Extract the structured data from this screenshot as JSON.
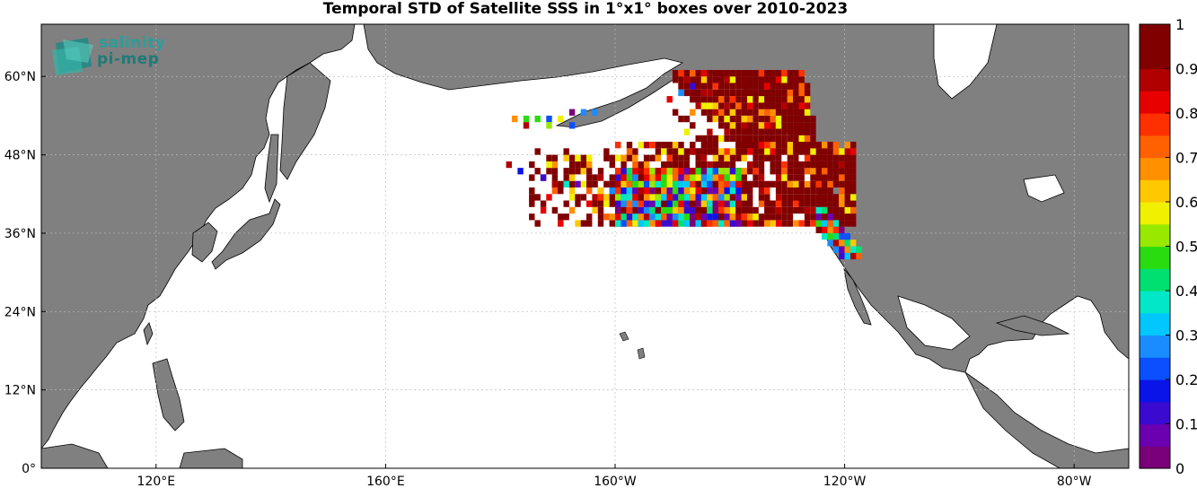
{
  "title": "Temporal STD of Satellite SSS in 1°x1° boxes over 2010-2023",
  "logo": {
    "line1": "salinity",
    "line2": "pi-mep"
  },
  "map": {
    "lon_range": [
      100,
      -75
    ],
    "lat_range": [
      0,
      68
    ],
    "lat_ticks": [
      {
        "value": 0,
        "label": "0°"
      },
      {
        "value": 12,
        "label": "12°N"
      },
      {
        "value": 24,
        "label": "24°N"
      },
      {
        "value": 36,
        "label": "36°N"
      },
      {
        "value": 48,
        "label": "48°N"
      },
      {
        "value": 60,
        "label": "60°N"
      }
    ],
    "lon_ticks": [
      {
        "value": 120,
        "label": "120°E"
      },
      {
        "value": 160,
        "label": "160°E"
      },
      {
        "value": -160,
        "label": "160°W"
      },
      {
        "value": -120,
        "label": "120°W"
      },
      {
        "value": -80,
        "label": "80°W"
      }
    ],
    "land_color": "#808080",
    "ocean_color": "#ffffff"
  },
  "colorbar": {
    "min": 0,
    "max": 1,
    "colors": [
      "#7a007a",
      "#6a00b0",
      "#3a0ad0",
      "#0a14e8",
      "#0a50ff",
      "#1a8cff",
      "#00c8ff",
      "#00e8c8",
      "#00e070",
      "#28dc10",
      "#98e800",
      "#f0f000",
      "#ffc800",
      "#ff9000",
      "#ff6000",
      "#ff3000",
      "#e80000",
      "#b00000",
      "#800000",
      "#800000"
    ],
    "ticks": [
      {
        "value": 0,
        "label": "0"
      },
      {
        "value": 0.1,
        "label": "0.1"
      },
      {
        "value": 0.2,
        "label": "0.2"
      },
      {
        "value": 0.3,
        "label": "0.3"
      },
      {
        "value": 0.4,
        "label": "0.4"
      },
      {
        "value": 0.5,
        "label": "0.5"
      },
      {
        "value": 0.6,
        "label": "0.6"
      },
      {
        "value": 0.7,
        "label": "0.7"
      },
      {
        "value": 0.8,
        "label": "0.8"
      },
      {
        "value": 0.9,
        "label": "0.9"
      },
      {
        "value": 1,
        "label": "1"
      }
    ]
  },
  "data_regions": [
    {
      "name": "northeast-pacific-core",
      "lon": [
        -175,
        -118
      ],
      "lat": [
        37,
        50
      ],
      "level": "high"
    },
    {
      "name": "western-tail",
      "lon": [
        -160,
        -138
      ],
      "lat": [
        37,
        46
      ],
      "level": "mixed"
    },
    {
      "name": "gulf-of-alaska",
      "lon": [
        -150,
        -125
      ],
      "lat": [
        48,
        61
      ],
      "level": "high"
    },
    {
      "name": "california-coast",
      "lon": [
        -125,
        -117
      ],
      "lat": [
        32,
        40
      ],
      "level": "mixed"
    }
  ]
}
